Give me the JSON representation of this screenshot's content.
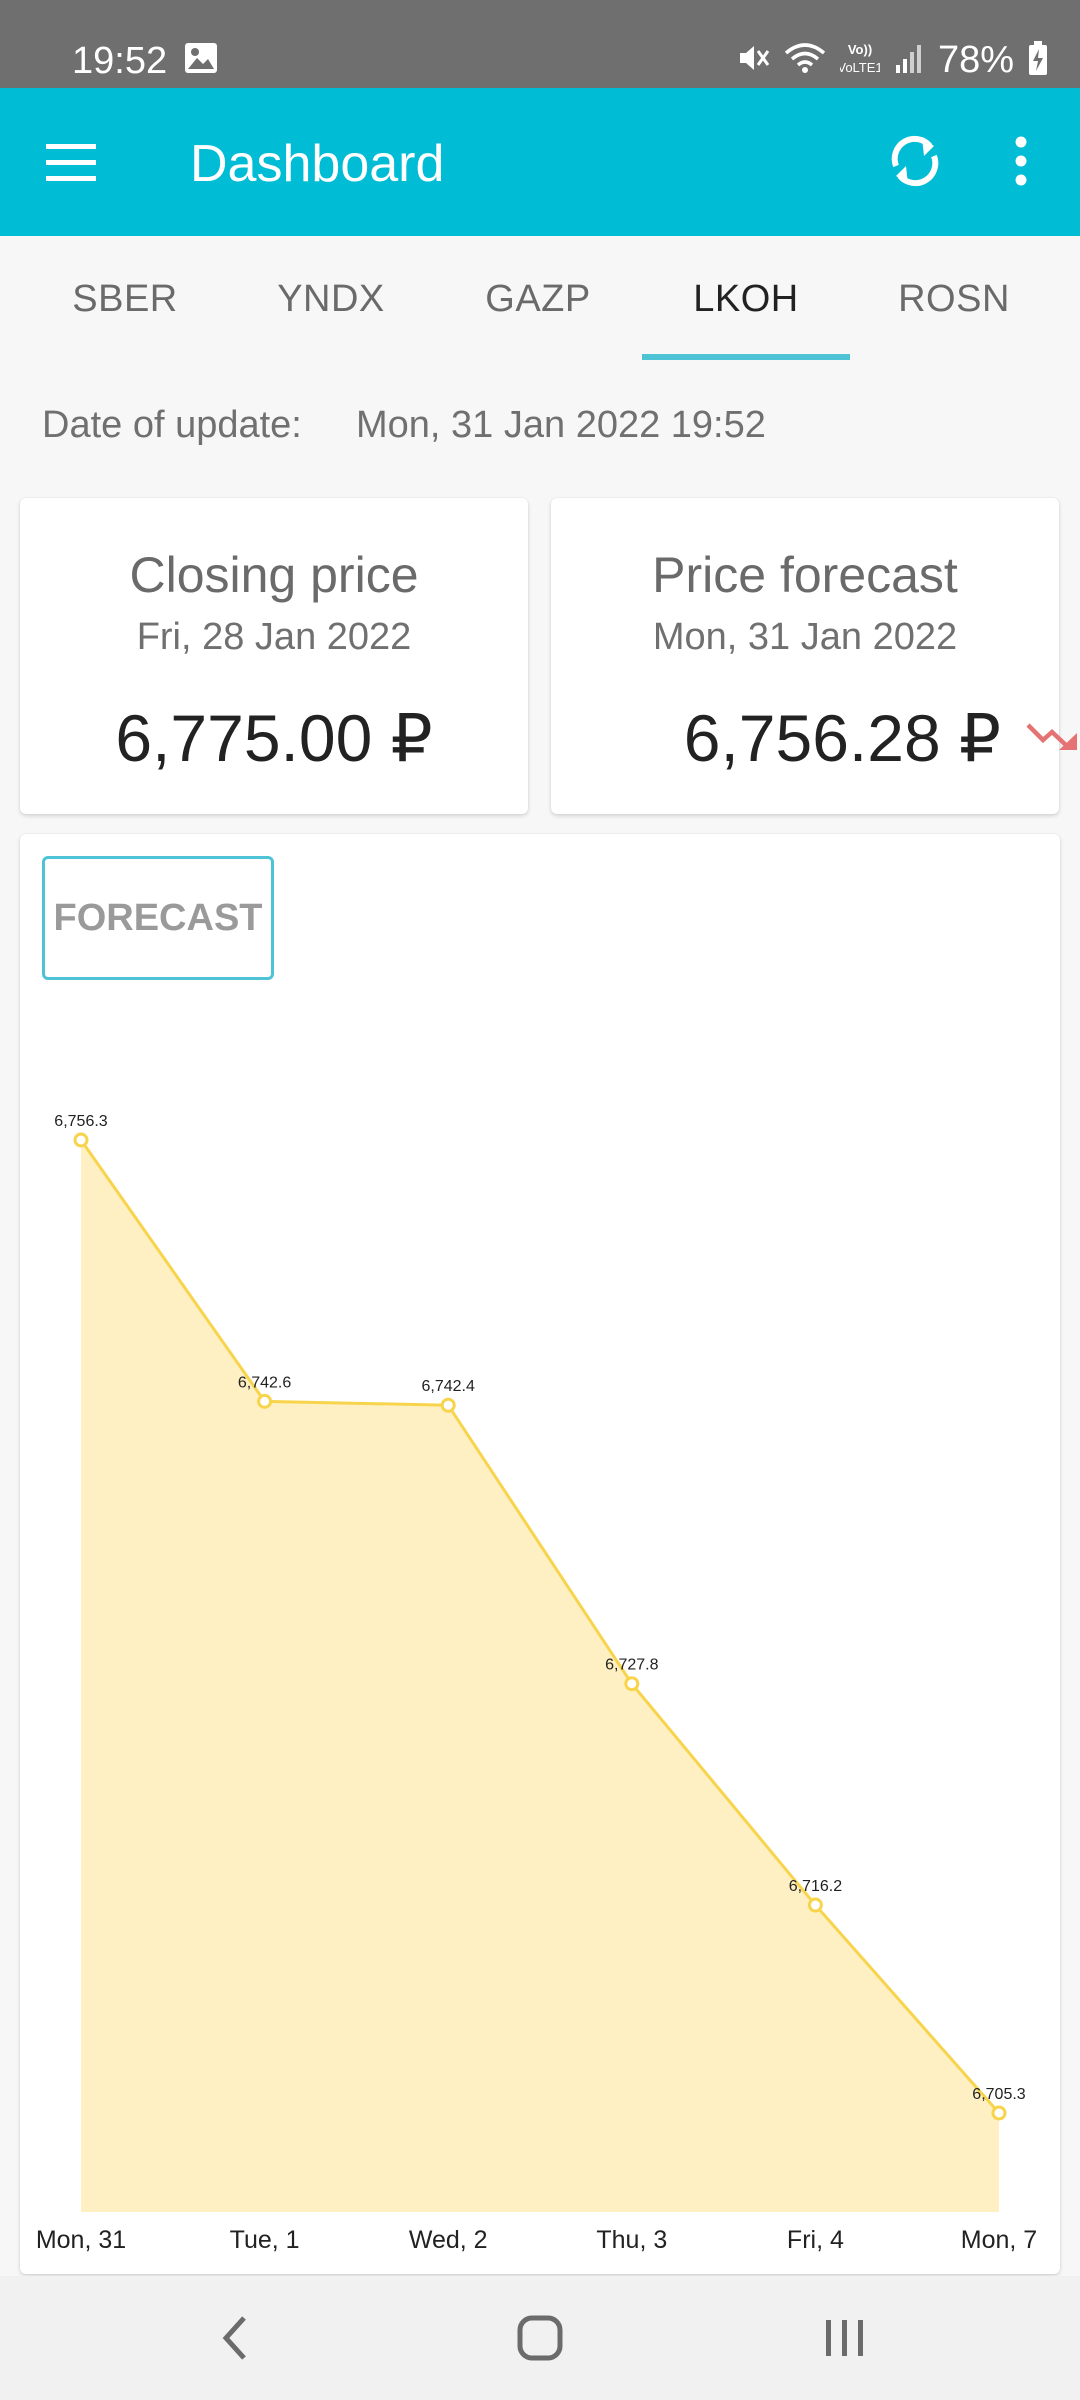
{
  "status_bar": {
    "time": "19:52",
    "battery": "78%",
    "network_label": "VoLTE1"
  },
  "app_bar": {
    "title": "Dashboard"
  },
  "tabs": [
    {
      "label": "SBER",
      "active": false
    },
    {
      "label": "YNDX",
      "active": false
    },
    {
      "label": "GAZP",
      "active": false
    },
    {
      "label": "LKOH",
      "active": true
    },
    {
      "label": "ROSN",
      "active": false
    }
  ],
  "update": {
    "label": "Date of update:",
    "value": "Mon, 31 Jan 2022 19:52"
  },
  "closing_card": {
    "title": "Closing price",
    "date": "Fri, 28 Jan 2022",
    "price": "6,775.00 ₽"
  },
  "forecast_card": {
    "title": "Price forecast",
    "date": "Mon, 31 Jan 2022",
    "price": "6,756.28 ₽",
    "trend": "down",
    "trend_color": "#e57373"
  },
  "chart": {
    "button_label": "FORECAST",
    "accent_color": "#4fc3d6"
  },
  "chart_data": {
    "type": "area",
    "categories": [
      "Mon, 31",
      "Tue, 1",
      "Wed, 2",
      "Thu, 3",
      "Fri, 4",
      "Mon, 7"
    ],
    "values": [
      6756.3,
      6742.6,
      6742.4,
      6727.8,
      6716.2,
      6705.3
    ],
    "value_labels": [
      "6,756.3",
      "6,742.6",
      "6,742.4",
      "6,727.8",
      "6,716.2",
      "6,705.3"
    ],
    "line_color": "#f7d44c",
    "fill_color": "#fff0c4",
    "grid": false
  }
}
